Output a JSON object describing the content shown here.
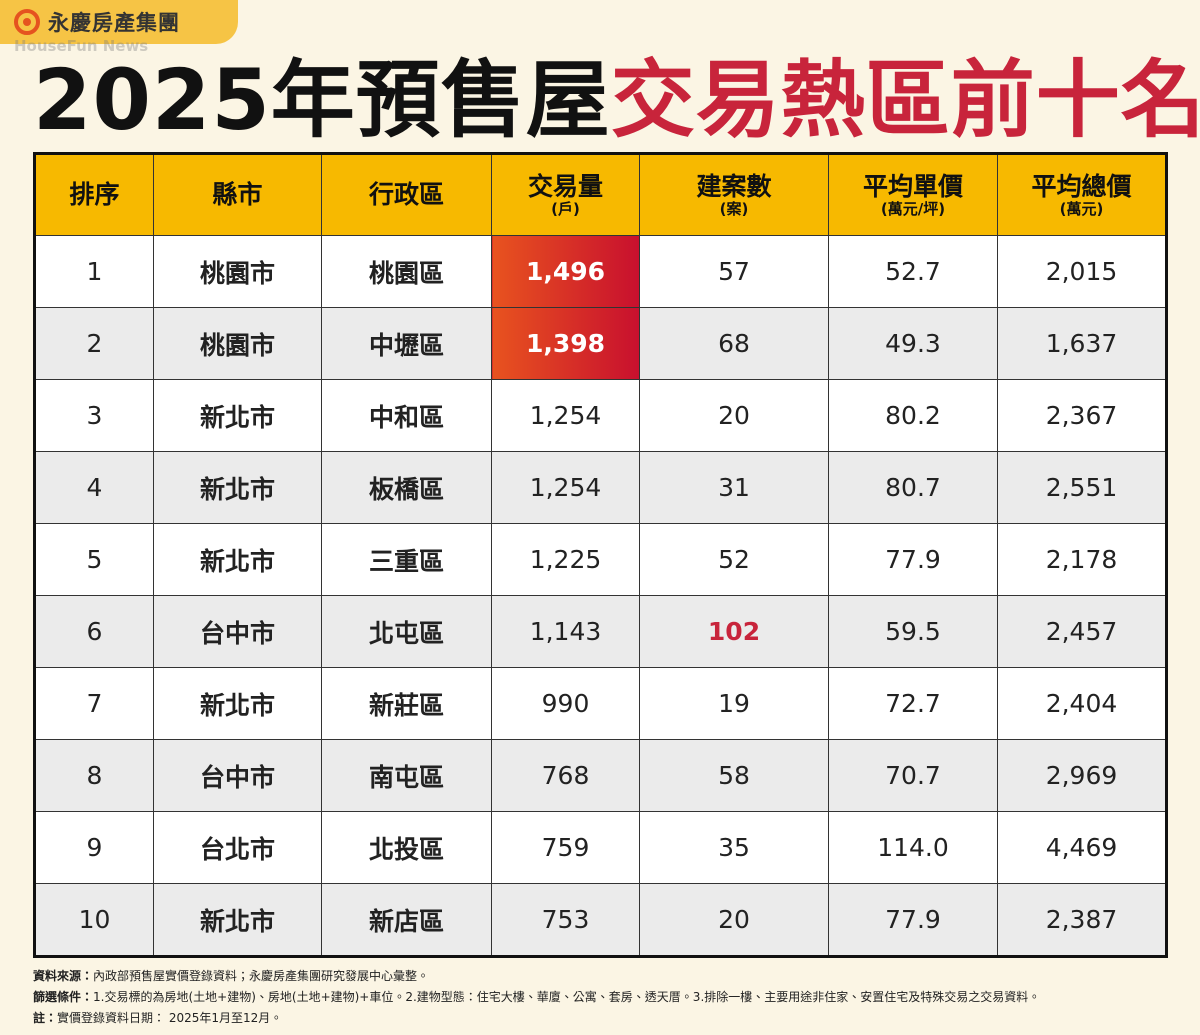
{
  "header": {
    "brand": "永慶房產集團",
    "watermark": "HouseFun News",
    "title_black": "2025年預售屋",
    "title_red": "交易熱區前十名"
  },
  "table": {
    "columns": [
      {
        "label": "排序"
      },
      {
        "label": "縣市"
      },
      {
        "label": "行政區"
      },
      {
        "label": "交易量",
        "unit": "(戶)"
      },
      {
        "label": "建案數",
        "unit": "(案)"
      },
      {
        "label": "平均單價",
        "unit": "(萬元/坪)"
      },
      {
        "label": "平均總價",
        "unit": "(萬元)"
      }
    ],
    "rows": [
      [
        "1",
        "桃園市",
        "桃園區",
        "1,496",
        "57",
        "52.7",
        "2,015"
      ],
      [
        "2",
        "桃園市",
        "中壢區",
        "1,398",
        "68",
        "49.3",
        "1,637"
      ],
      [
        "3",
        "新北市",
        "中和區",
        "1,254",
        "20",
        "80.2",
        "2,367"
      ],
      [
        "4",
        "新北市",
        "板橋區",
        "1,254",
        "31",
        "80.7",
        "2,551"
      ],
      [
        "5",
        "新北市",
        "三重區",
        "1,225",
        "52",
        "77.9",
        "2,178"
      ],
      [
        "6",
        "台中市",
        "北屯區",
        "1,143",
        "102",
        "59.5",
        "2,457"
      ],
      [
        "7",
        "新北市",
        "新莊區",
        "990",
        "19",
        "72.7",
        "2,404"
      ],
      [
        "8",
        "台中市",
        "南屯區",
        "768",
        "58",
        "70.7",
        "2,969"
      ],
      [
        "9",
        "台北市",
        "北投區",
        "759",
        "35",
        "114.0",
        "4,469"
      ],
      [
        "10",
        "新北市",
        "新店區",
        "753",
        "20",
        "77.9",
        "2,387"
      ]
    ]
  },
  "notes": [
    {
      "label": "資料來源：",
      "text": "內政部預售屋實價登錄資料；永慶房產集團研究發展中心彙整。"
    },
    {
      "label": "篩選條件：",
      "text": "1.交易標的為房地(土地+建物)、房地(土地+建物)+車位。2.建物型態：住宅大樓、華廈、公寓、套房、透天厝。3.排除一樓、主要用途非住家、安置住宅及特殊交易之交易資料。"
    },
    {
      "label": "註：",
      "text": "實價登錄資料日期： 2025年1月至12月。"
    }
  ]
}
